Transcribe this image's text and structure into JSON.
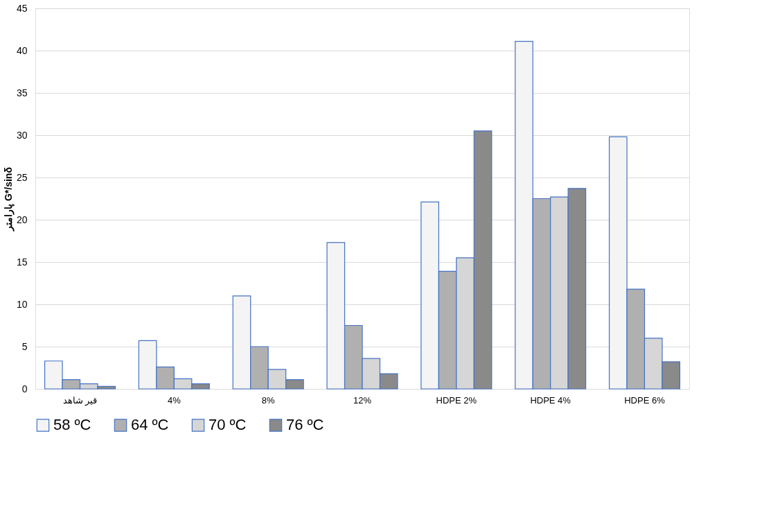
{
  "chart_data": {
    "type": "bar",
    "ylabel": "پارامتر G*/sinδ",
    "categories": [
      "قیر شاهد",
      "4%",
      "8%",
      "12%",
      "HDPE 2%",
      "HDPE 4%",
      "HDPE 6%"
    ],
    "series": [
      {
        "name": "58 ºC",
        "color": "#f4f4f4",
        "values": [
          3.3,
          5.7,
          11.0,
          17.3,
          22.1,
          41.1,
          29.8
        ]
      },
      {
        "name": "64 ºC",
        "color": "#b0b0b0",
        "values": [
          1.1,
          2.6,
          5.0,
          7.5,
          13.9,
          22.5,
          11.8
        ]
      },
      {
        "name": "70 ºC",
        "color": "#d6d6d6",
        "values": [
          0.6,
          1.2,
          2.3,
          3.6,
          15.5,
          22.7,
          6.0
        ]
      },
      {
        "name": "76 ºC",
        "color": "#8a8a8a",
        "values": [
          0.3,
          0.6,
          1.1,
          1.8,
          30.5,
          23.7,
          3.2
        ]
      }
    ],
    "ylim": [
      0,
      45
    ],
    "yticks": [
      0,
      5,
      10,
      15,
      20,
      25,
      30,
      35,
      40,
      45
    ],
    "grid": "y",
    "legend": "bottom"
  }
}
